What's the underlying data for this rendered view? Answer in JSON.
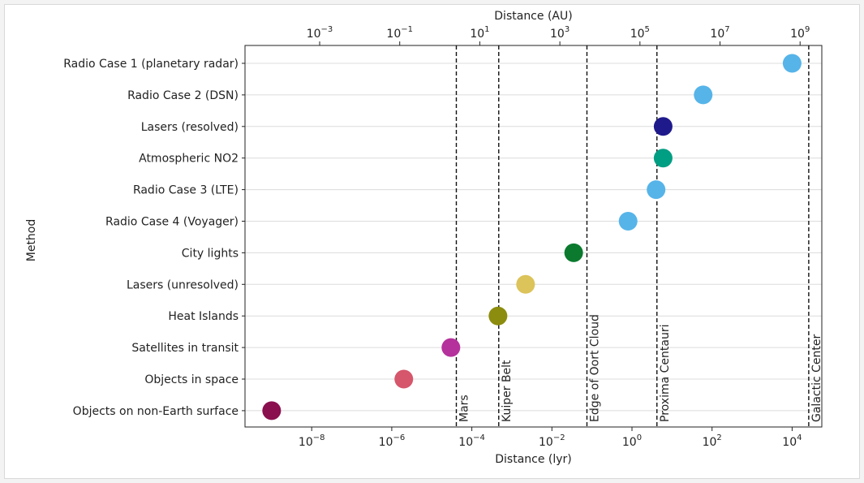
{
  "chart_data": {
    "type": "scatter",
    "ylabel": "Method",
    "xlabel_bottom": "Distance (lyr)",
    "xlabel_top": "Distance (AU)",
    "xscale": "log",
    "xlim_lyr": [
      1e-10,
      10000.0
    ],
    "grid": "horizontal",
    "bottom_ticks": [
      {
        "value": 1e-08,
        "base": "10",
        "exp": "−8"
      },
      {
        "value": 1e-06,
        "base": "10",
        "exp": "−6"
      },
      {
        "value": 0.0001,
        "base": "10",
        "exp": "−4"
      },
      {
        "value": 0.01,
        "base": "10",
        "exp": "−2"
      },
      {
        "value": 1,
        "base": "10",
        "exp": "0"
      },
      {
        "value": 100.0,
        "base": "10",
        "exp": "2"
      },
      {
        "value": 10000.0,
        "base": "10",
        "exp": "4"
      }
    ],
    "top_ticks": [
      {
        "value_au": 0.001,
        "base": "10",
        "exp": "−3"
      },
      {
        "value_au": 0.1,
        "base": "10",
        "exp": "−1"
      },
      {
        "value_au": 10.0,
        "base": "10",
        "exp": "1"
      },
      {
        "value_au": 1000.0,
        "base": "10",
        "exp": "3"
      },
      {
        "value_au": 100000.0,
        "base": "10",
        "exp": "5"
      },
      {
        "value_au": 10000000.0,
        "base": "10",
        "exp": "7"
      },
      {
        "value_au": 1000000000.0,
        "base": "10",
        "exp": "9"
      }
    ],
    "categories": [
      "Radio Case 1 (planetary radar)",
      "Radio Case 2 (DSN)",
      "Lasers (resolved)",
      "Atmospheric NO2",
      "Radio Case 3 (LTE)",
      "Radio Case 4 (Voyager)",
      "City lights",
      "Lasers (unresolved)",
      "Heat Islands",
      "Satellites in transit",
      "Objects in space",
      "Objects on non-Earth surface"
    ],
    "points": [
      {
        "method": "Radio Case 1 (planetary radar)",
        "distance_lyr": 10000,
        "color": "#56b4e9"
      },
      {
        "method": "Radio Case 2 (DSN)",
        "distance_lyr": 60,
        "color": "#56b4e9"
      },
      {
        "method": "Lasers (resolved)",
        "distance_lyr": 6,
        "color": "#1f1a8c"
      },
      {
        "method": "Atmospheric NO2",
        "distance_lyr": 6,
        "color": "#009e83"
      },
      {
        "method": "Radio Case 3 (LTE)",
        "distance_lyr": 4,
        "color": "#56b4e9"
      },
      {
        "method": "Radio Case 4 (Voyager)",
        "distance_lyr": 0.8,
        "color": "#56b4e9"
      },
      {
        "method": "City lights",
        "distance_lyr": 0.035,
        "color": "#0b7a2e"
      },
      {
        "method": "Lasers (unresolved)",
        "distance_lyr": 0.0022,
        "color": "#dcc35a"
      },
      {
        "method": "Heat Islands",
        "distance_lyr": 0.00045,
        "color": "#8c8c0e"
      },
      {
        "method": "Satellites in transit",
        "distance_lyr": 3e-05,
        "color": "#b5319c"
      },
      {
        "method": "Objects in space",
        "distance_lyr": 2e-06,
        "color": "#d6566c"
      },
      {
        "method": "Objects on non-Earth surface",
        "distance_lyr": 1e-09,
        "color": "#8a0f4e"
      }
    ],
    "reference_lines": [
      {
        "label": "Mars",
        "distance_lyr": 4.1e-05
      },
      {
        "label": "Kuiper Belt",
        "distance_lyr": 0.00047
      },
      {
        "label": "Edge of Oort Cloud",
        "distance_lyr": 0.075
      },
      {
        "label": "Proxima Centauri",
        "distance_lyr": 4.2
      },
      {
        "label": "Galactic Center",
        "distance_lyr": 26000
      }
    ]
  }
}
